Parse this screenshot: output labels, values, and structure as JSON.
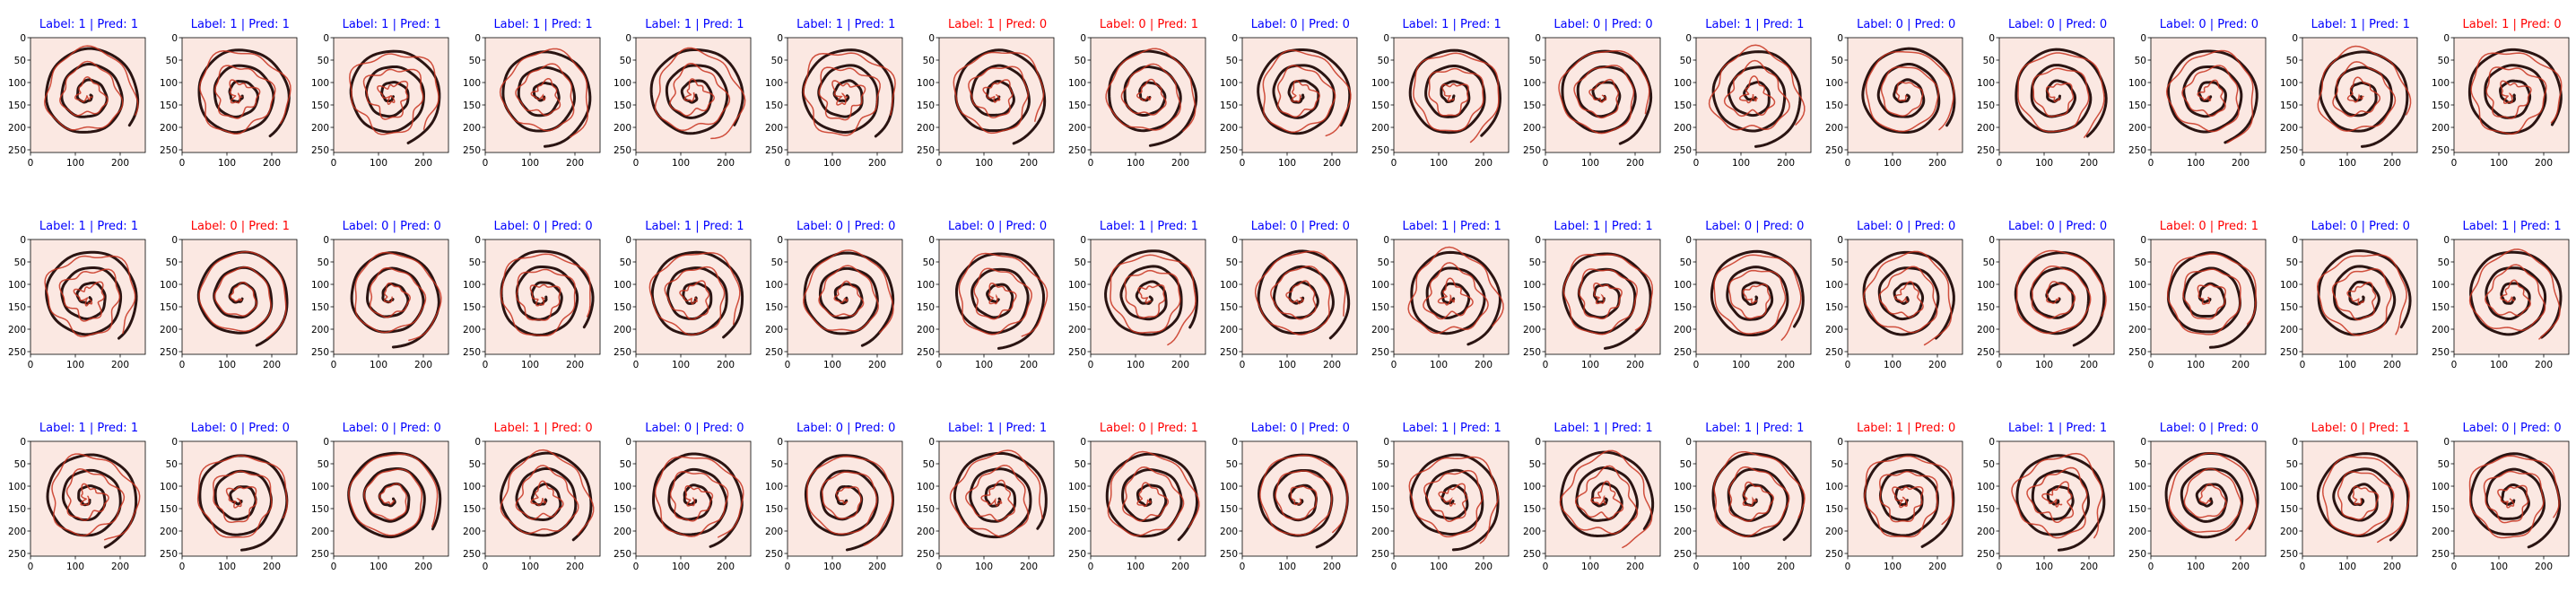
{
  "colors": {
    "correct": "#0000ff",
    "incorrect": "#ff0000",
    "stroke_ink": "#2a1412",
    "stroke_red": "#c8321e",
    "background_tint": "#fbe8e2"
  },
  "axes": {
    "xticks": [
      "0",
      "100",
      "200"
    ],
    "yticks": [
      "0",
      "50",
      "100",
      "150",
      "200",
      "250"
    ]
  },
  "rows": [
    [
      {
        "title": "Label: 1 | Pred: 1",
        "label": 1,
        "pred": 1
      },
      {
        "title": "Label: 1 | Pred: 1",
        "label": 1,
        "pred": 1
      },
      {
        "title": "Label: 1 | Pred: 1",
        "label": 1,
        "pred": 1
      },
      {
        "title": "Label: 1 | Pred: 1",
        "label": 1,
        "pred": 1
      },
      {
        "title": "Label: 1 | Pred: 1",
        "label": 1,
        "pred": 1
      },
      {
        "title": "Label: 1 | Pred: 1",
        "label": 1,
        "pred": 1
      },
      {
        "title": "Label: 1 | Pred: 0",
        "label": 1,
        "pred": 0
      },
      {
        "title": "Label: 0 | Pred: 1",
        "label": 0,
        "pred": 1
      },
      {
        "title": "Label: 0 | Pred: 0",
        "label": 0,
        "pred": 0
      },
      {
        "title": "Label: 1 | Pred: 1",
        "label": 1,
        "pred": 1
      },
      {
        "title": "Label: 0 | Pred: 0",
        "label": 0,
        "pred": 0
      },
      {
        "title": "Label: 1 | Pred: 1",
        "label": 1,
        "pred": 1
      },
      {
        "title": "Label: 0 | Pred: 0",
        "label": 0,
        "pred": 0
      },
      {
        "title": "Label: 0 | Pred: 0",
        "label": 0,
        "pred": 0
      },
      {
        "title": "Label: 0 | Pred: 0",
        "label": 0,
        "pred": 0
      },
      {
        "title": "Label: 1 | Pred: 1",
        "label": 1,
        "pred": 1
      },
      {
        "title": "Label: 1 | Pred: 0",
        "label": 1,
        "pred": 0
      }
    ],
    [
      {
        "title": "Label: 1 | Pred: 1",
        "label": 1,
        "pred": 1
      },
      {
        "title": "Label: 0 | Pred: 1",
        "label": 0,
        "pred": 1
      },
      {
        "title": "Label: 0 | Pred: 0",
        "label": 0,
        "pred": 0
      },
      {
        "title": "Label: 0 | Pred: 0",
        "label": 0,
        "pred": 0
      },
      {
        "title": "Label: 1 | Pred: 1",
        "label": 1,
        "pred": 1
      },
      {
        "title": "Label: 0 | Pred: 0",
        "label": 0,
        "pred": 0
      },
      {
        "title": "Label: 0 | Pred: 0",
        "label": 0,
        "pred": 0
      },
      {
        "title": "Label: 1 | Pred: 1",
        "label": 1,
        "pred": 1
      },
      {
        "title": "Label: 0 | Pred: 0",
        "label": 0,
        "pred": 0
      },
      {
        "title": "Label: 1 | Pred: 1",
        "label": 1,
        "pred": 1
      },
      {
        "title": "Label: 1 | Pred: 1",
        "label": 1,
        "pred": 1
      },
      {
        "title": "Label: 0 | Pred: 0",
        "label": 0,
        "pred": 0
      },
      {
        "title": "Label: 0 | Pred: 0",
        "label": 0,
        "pred": 0
      },
      {
        "title": "Label: 0 | Pred: 0",
        "label": 0,
        "pred": 0
      },
      {
        "title": "Label: 0 | Pred: 1",
        "label": 0,
        "pred": 1
      },
      {
        "title": "Label: 0 | Pred: 0",
        "label": 0,
        "pred": 0
      },
      {
        "title": "Label: 1 | Pred: 1",
        "label": 1,
        "pred": 1
      }
    ],
    [
      {
        "title": "Label: 1 | Pred: 1",
        "label": 1,
        "pred": 1
      },
      {
        "title": "Label: 0 | Pred: 0",
        "label": 0,
        "pred": 0
      },
      {
        "title": "Label: 0 | Pred: 0",
        "label": 0,
        "pred": 0
      },
      {
        "title": "Label: 1 | Pred: 0",
        "label": 1,
        "pred": 0
      },
      {
        "title": "Label: 0 | Pred: 0",
        "label": 0,
        "pred": 0
      },
      {
        "title": "Label: 0 | Pred: 0",
        "label": 0,
        "pred": 0
      },
      {
        "title": "Label: 1 | Pred: 1",
        "label": 1,
        "pred": 1
      },
      {
        "title": "Label: 0 | Pred: 1",
        "label": 0,
        "pred": 1
      },
      {
        "title": "Label: 0 | Pred: 0",
        "label": 0,
        "pred": 0
      },
      {
        "title": "Label: 1 | Pred: 1",
        "label": 1,
        "pred": 1
      },
      {
        "title": "Label: 1 | Pred: 1",
        "label": 1,
        "pred": 1
      },
      {
        "title": "Label: 1 | Pred: 1",
        "label": 1,
        "pred": 1
      },
      {
        "title": "Label: 1 | Pred: 0",
        "label": 1,
        "pred": 0
      },
      {
        "title": "Label: 1 | Pred: 1",
        "label": 1,
        "pred": 1
      },
      {
        "title": "Label: 0 | Pred: 0",
        "label": 0,
        "pred": 0
      },
      {
        "title": "Label: 0 | Pred: 1",
        "label": 0,
        "pred": 1
      },
      {
        "title": "Label: 0 | Pred: 0",
        "label": 0,
        "pred": 0
      }
    ]
  ]
}
